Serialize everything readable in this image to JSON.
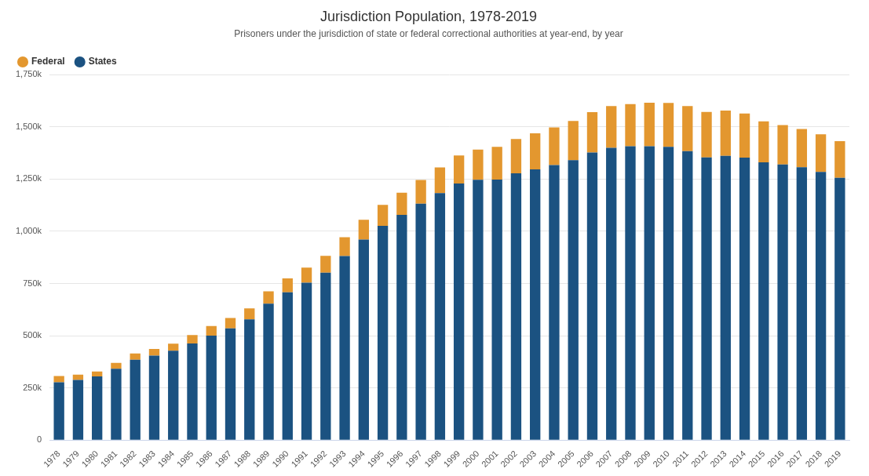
{
  "chart_data": {
    "type": "bar",
    "title": "Jurisdiction Population, 1978-2019",
    "subtitle": "Prisoners under the jurisdiction of state or federal correctional authorities at year-end, by year",
    "categories": [
      "1978",
      "1979",
      "1980",
      "1981",
      "1982",
      "1983",
      "1984",
      "1985",
      "1986",
      "1987",
      "1988",
      "1989",
      "1990",
      "1991",
      "1992",
      "1993",
      "1994",
      "1995",
      "1996",
      "1997",
      "1998",
      "1999",
      "2000",
      "2001",
      "2002",
      "2003",
      "2004",
      "2005",
      "2006",
      "2007",
      "2008",
      "2009",
      "2010",
      "2011",
      "2012",
      "2013",
      "2014",
      "2015",
      "2016",
      "2017",
      "2018",
      "2019"
    ],
    "series": [
      {
        "name": "States",
        "color": "#1b5281",
        "values": [
          277000,
          288000,
          305000,
          342000,
          385000,
          405000,
          428000,
          463000,
          500000,
          535000,
          578000,
          653000,
          708000,
          754000,
          802000,
          881000,
          960000,
          1026000,
          1078000,
          1132000,
          1182000,
          1228000,
          1246000,
          1247000,
          1277000,
          1296000,
          1317000,
          1340000,
          1377000,
          1399000,
          1407000,
          1407000,
          1404000,
          1383000,
          1353000,
          1361000,
          1352000,
          1330000,
          1319000,
          1306000,
          1284000,
          1256000
        ]
      },
      {
        "name": "Federal",
        "color": "#e3972f",
        "values": [
          30000,
          26000,
          24000,
          28000,
          30000,
          32000,
          34000,
          40000,
          46000,
          50000,
          53000,
          59000,
          66000,
          72000,
          80000,
          90000,
          95000,
          100000,
          106000,
          113000,
          123000,
          135000,
          145000,
          157000,
          164000,
          173000,
          180000,
          188000,
          193000,
          200000,
          201000,
          208000,
          210000,
          216000,
          218000,
          216000,
          211000,
          196000,
          189000,
          183000,
          180000,
          175000
        ]
      }
    ],
    "stacked": true,
    "legend": "upper left",
    "grid": true,
    "ylim": [
      0,
      1750000
    ],
    "yticks": [
      0,
      {
        "value": 250000,
        "label": "250k"
      },
      {
        "value": 500000,
        "label": "500k"
      },
      {
        "value": 750000,
        "label": "750k"
      },
      {
        "value": 1000000,
        "label": "1,000k"
      },
      {
        "value": 1250000,
        "label": "1,250k"
      },
      {
        "value": 1500000,
        "label": "1,500k"
      },
      {
        "value": 1750000,
        "label": "1,750k"
      }
    ]
  }
}
